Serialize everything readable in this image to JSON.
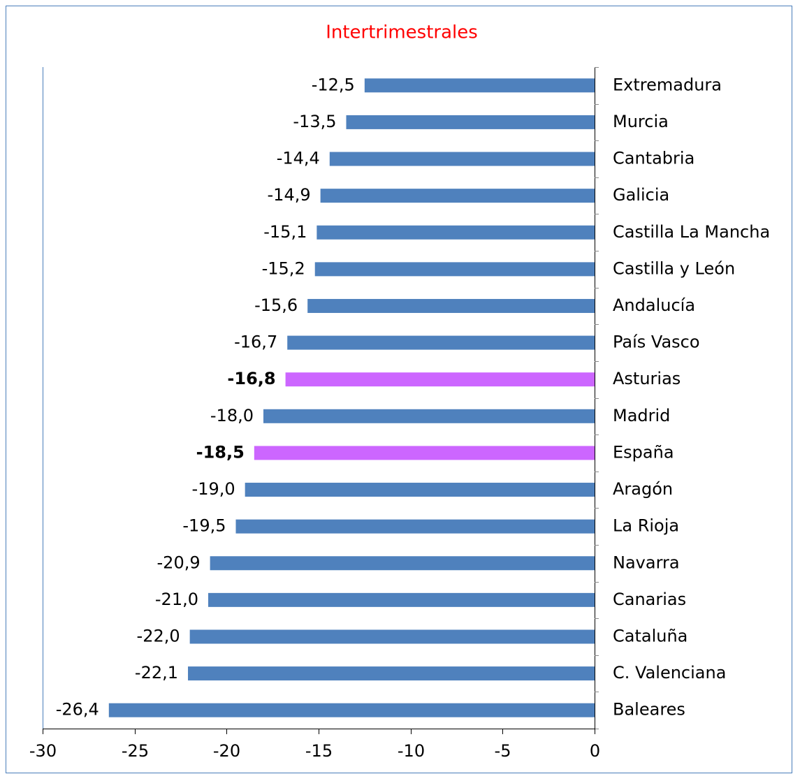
{
  "chart_data": {
    "type": "barh",
    "title": "Intertrimestrales",
    "categories": [
      "Extremadura",
      "Murcia",
      "Cantabria",
      "Galicia",
      "Castilla La Mancha",
      "Castilla y León",
      "Andalucía",
      "País Vasco",
      "Asturias",
      "Madrid",
      "España",
      "Aragón",
      "La Rioja",
      "Navarra",
      "Canarias",
      "Cataluña",
      "C. Valenciana",
      "Baleares"
    ],
    "values": [
      -12.5,
      -13.5,
      -14.4,
      -14.9,
      -15.1,
      -15.2,
      -15.6,
      -16.7,
      -16.8,
      -18.0,
      -18.5,
      -19.0,
      -19.5,
      -20.9,
      -21.0,
      -22.0,
      -22.1,
      -26.4
    ],
    "value_labels": [
      "-12,5",
      "-13,5",
      "-14,4",
      "-14,9",
      "-15,1",
      "-15,2",
      "-15,6",
      "-16,7",
      "-16,8",
      "-18,0",
      "-18,5",
      "-19,0",
      "-19,5",
      "-20,9",
      "-21,0",
      "-22,0",
      "-22,1",
      "-26,4"
    ],
    "color": "#4f81bd",
    "colors": [
      "#4f81bd",
      "#4f81bd",
      "#4f81bd",
      "#4f81bd",
      "#4f81bd",
      "#4f81bd",
      "#4f81bd",
      "#4f81bd",
      "#cc66ff",
      "#4f81bd",
      "#cc66ff",
      "#4f81bd",
      "#4f81bd",
      "#4f81bd",
      "#4f81bd",
      "#4f81bd",
      "#4f81bd",
      "#4f81bd"
    ],
    "xlim": [
      -30,
      0
    ],
    "xticks": [
      -30,
      -25,
      -20,
      -15,
      -10,
      -5,
      0
    ],
    "grid": false
  }
}
